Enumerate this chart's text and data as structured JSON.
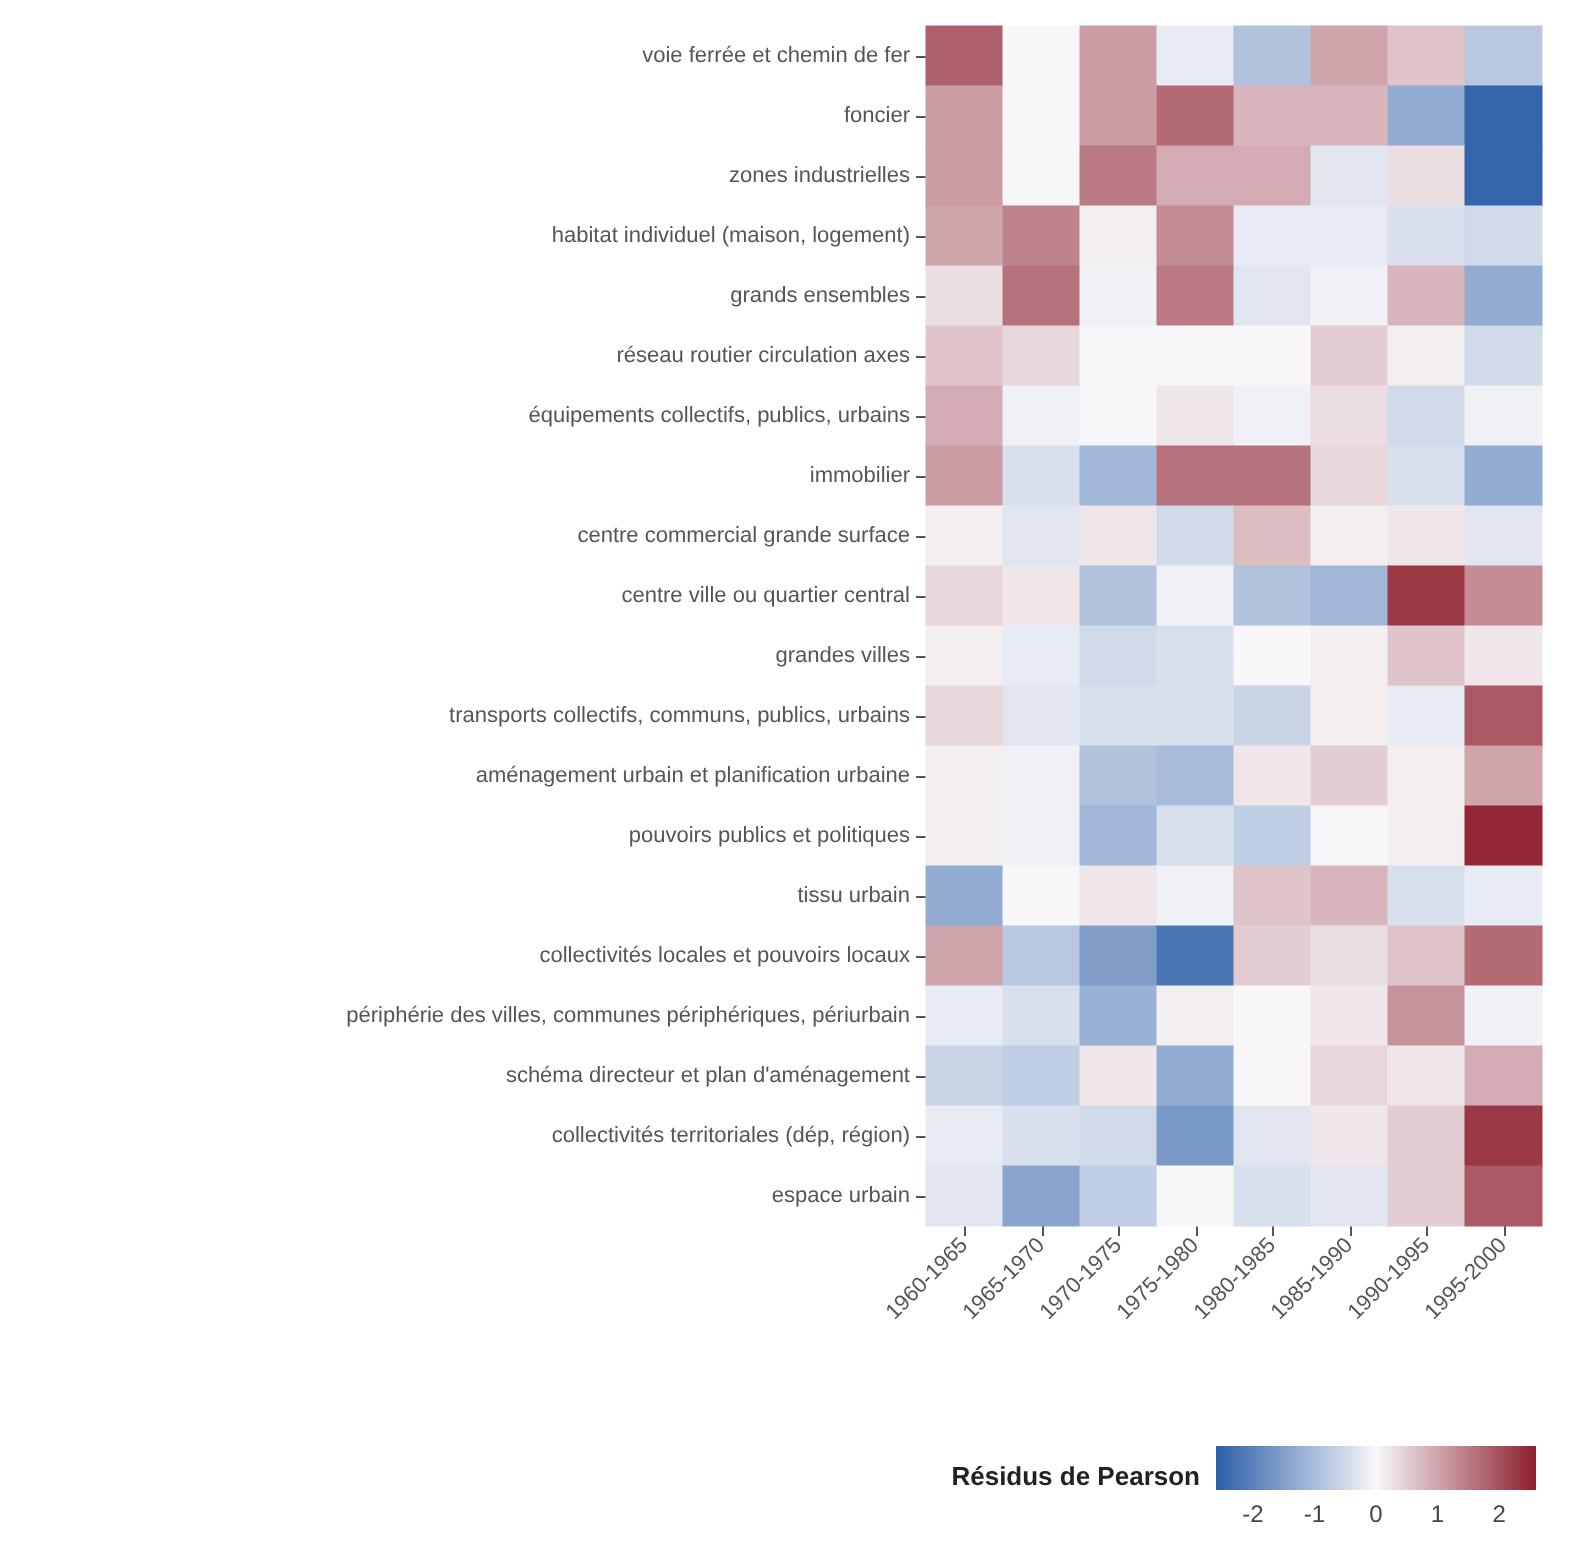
{
  "chart_data": {
    "type": "heatmap",
    "clabel": "Résidus de Pearson",
    "categories": [
      "1960-1965",
      "1965-1970",
      "1970-1975",
      "1975-1980",
      "1980-1985",
      "1985-1990",
      "1990-1995",
      "1995-2000"
    ],
    "y_categories": [
      "voie ferrée et chemin de fer",
      "foncier",
      "zones industrielles",
      "habitat individuel (maison, logement)",
      "grands ensembles",
      "réseau routier circulation axes",
      "équipements collectifs, publics, urbains",
      "immobilier",
      "centre commercial grande surface",
      "centre ville ou quartier central",
      "grandes villes",
      "transports collectifs, communs, publics, urbains",
      "aménagement urbain et planification urbaine",
      "pouvoirs publics et politiques",
      "tissu urbain",
      "collectivités locales et pouvoirs locaux",
      "périphérie des villes, communes périphériques, périurbain",
      "schéma directeur et plan d'aménagement",
      "collectivités territoriales (dép, région)",
      "espace urbain"
    ],
    "cells": [
      [
        1.8,
        0.0,
        1.1,
        -0.2,
        -0.9,
        1.0,
        0.6,
        -0.8
      ],
      [
        1.1,
        0.0,
        1.1,
        1.7,
        0.8,
        0.8,
        -1.3,
        -2.5
      ],
      [
        1.1,
        0.0,
        1.5,
        0.9,
        0.9,
        -0.3,
        0.3,
        -2.5
      ],
      [
        1.0,
        1.4,
        0.1,
        1.3,
        -0.2,
        -0.2,
        -0.4,
        -0.5
      ],
      [
        0.3,
        1.6,
        -0.1,
        1.5,
        -0.3,
        -0.1,
        0.8,
        -1.3
      ],
      [
        0.6,
        0.4,
        0.0,
        0.0,
        0.0,
        0.5,
        0.1,
        -0.5
      ],
      [
        0.9,
        -0.1,
        0.0,
        0.2,
        -0.1,
        0.3,
        -0.5,
        -0.1
      ],
      [
        1.1,
        -0.4,
        -1.1,
        1.6,
        1.6,
        0.4,
        -0.4,
        -1.3
      ],
      [
        0.1,
        -0.3,
        0.2,
        -0.5,
        0.7,
        0.1,
        0.2,
        -0.3
      ],
      [
        0.4,
        0.2,
        -0.9,
        -0.1,
        -0.9,
        -1.1,
        2.3,
        1.3
      ],
      [
        0.1,
        -0.2,
        -0.5,
        -0.4,
        0.0,
        0.1,
        0.6,
        0.2
      ],
      [
        0.4,
        -0.3,
        -0.4,
        -0.4,
        -0.6,
        0.1,
        -0.2,
        1.9
      ],
      [
        0.1,
        -0.1,
        -0.9,
        -1.0,
        0.2,
        0.5,
        0.1,
        1.0
      ],
      [
        0.1,
        -0.1,
        -1.1,
        -0.4,
        -0.7,
        0.0,
        0.1,
        2.5
      ],
      [
        -1.3,
        0.0,
        0.2,
        -0.1,
        0.6,
        0.8,
        -0.4,
        -0.2
      ],
      [
        1.0,
        -0.8,
        -1.5,
        -2.2,
        0.5,
        0.3,
        0.6,
        1.7
      ],
      [
        -0.2,
        -0.4,
        -1.2,
        0.1,
        0.0,
        0.2,
        1.2,
        -0.1
      ],
      [
        -0.6,
        -0.7,
        0.2,
        -1.3,
        0.0,
        0.4,
        0.2,
        0.9
      ],
      [
        -0.2,
        -0.4,
        -0.5,
        -1.6,
        -0.3,
        0.2,
        0.5,
        2.3
      ],
      [
        -0.3,
        -1.4,
        -0.7,
        0.0,
        -0.4,
        -0.3,
        0.5,
        1.9
      ]
    ],
    "clim": [
      -2.6,
      2.6
    ],
    "cticks": [
      -2,
      -1,
      0,
      1,
      2
    ],
    "colors": [
      "#2c5fa8",
      "#f7f7f9",
      "#8e1f2e"
    ]
  }
}
